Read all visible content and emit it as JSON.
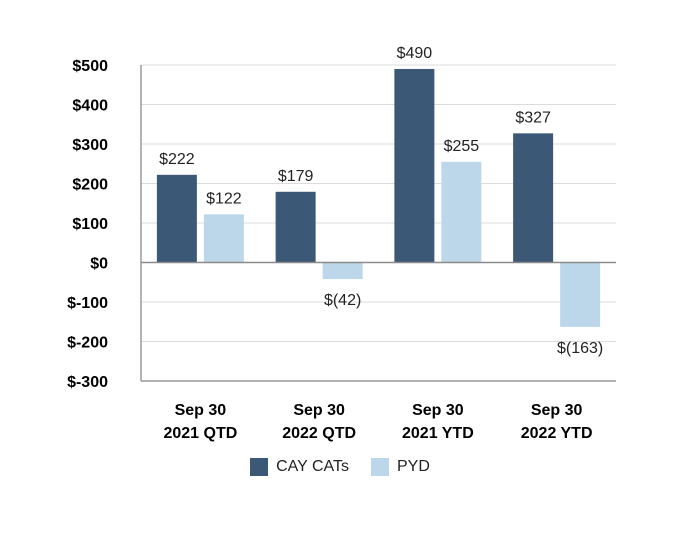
{
  "chart_data": {
    "type": "bar",
    "categories": [
      [
        "Sep 30",
        "2021 QTD"
      ],
      [
        "Sep 30",
        "2022 QTD"
      ],
      [
        "Sep 30",
        "2021 YTD"
      ],
      [
        "Sep 30",
        "2022 YTD"
      ]
    ],
    "series": [
      {
        "name": "CAY CATs",
        "values": [
          222,
          179,
          490,
          327
        ],
        "labels": [
          "$222",
          "$179",
          "$490",
          "$327"
        ],
        "color": "#3b5877"
      },
      {
        "name": "PYD",
        "values": [
          122,
          -42,
          255,
          -163
        ],
        "labels": [
          "$122",
          "$(42)",
          "$255",
          "$(163)"
        ],
        "color": "#bcd7ea"
      }
    ],
    "ylim": [
      -300,
      500
    ],
    "yticks": [
      500,
      400,
      300,
      200,
      100,
      0,
      -100,
      -200,
      -300
    ],
    "ytick_labels": [
      "$500",
      "$400",
      "$300",
      "$200",
      "$100",
      "$0",
      "$-100",
      "$-200",
      "$-300"
    ],
    "legend_position": "bottom",
    "grid": true
  }
}
